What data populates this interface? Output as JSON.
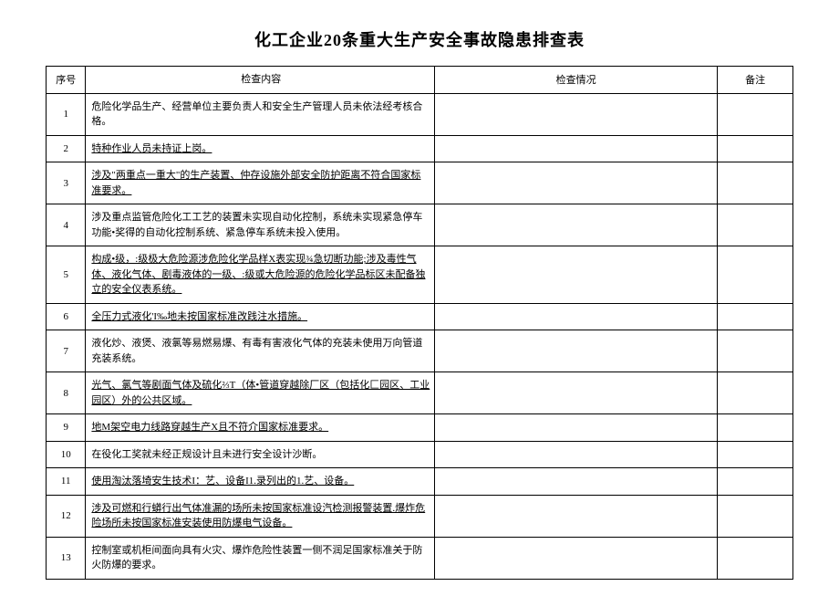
{
  "title": "化工企业20条重大生产安全事故隐患排查表",
  "headers": {
    "num": "序号",
    "content": "检查内容",
    "status": "检查情况",
    "note": "备注"
  },
  "rows": [
    {
      "num": "1",
      "content": "危险化学品生产、经营单位主要负责人和安全生产管理人员未依法经考核合格。",
      "underline": false
    },
    {
      "num": "2",
      "content": "特种作业人员未持证上岗。",
      "underline": true
    },
    {
      "num": "3",
      "content": "涉及\"两重点一重大\"的生产装置、仲存设施外部安全防护距离不符合国家标准要求。",
      "underline": true
    },
    {
      "num": "4",
      "content": "涉及重点监管危险化工工艺的装置未实现自动化控制，系统未实现紧急停车功能•奖得的自动化控制系统、紧急停车系统未投入使用。",
      "underline": false
    },
    {
      "num": "5",
      "content": "构成•级，:级极大危险源涉危险化学品样X表实现¾急切断功能;涉及毒性气体、液化气体、剧毒液体的一级、:级或大危险源的危险化学品标区未配备独立的安全仪表系统。",
      "underline": true
    },
    {
      "num": "6",
      "content": "全压力式液化'I‰地未按国家标准改践注水措施。",
      "underline": true
    },
    {
      "num": "7",
      "content": "液化炒、液煲、液氯等易燃易爆、有毒有害液化气体的充装未使用万向管道充装系统。",
      "underline": false
    },
    {
      "num": "8",
      "content": "光气、氯气等剧面气体及硫化⅔T（体•管道穿越除厂区（包括化匚园区、工业园区）外的公共区域。",
      "underline": true
    },
    {
      "num": "9",
      "content": "地M架空电力线路穿越生产X且不符介国家标准要求。",
      "underline": true
    },
    {
      "num": "10",
      "content": "在役化工奖就未经正规设计且未进行安全设计沙断。",
      "underline": false
    },
    {
      "num": "11",
      "content": "使用淘汰落埼安生技术I：艺、设备I1.录列出的1.艺、设备。",
      "underline": true
    },
    {
      "num": "12",
      "content": "涉及可燃和行蟒行出气体准漏的场所未按国家标准设汽检测报警装置.爆炸危险场所未按国家标准安装使用防爆电气设备。",
      "underline": true
    },
    {
      "num": "13",
      "content": "控制室或机柜间面向具有火灾、爆炸危险性装置一侧不润足国家标准关于防火防爆的要求。",
      "underline": false
    }
  ],
  "style": {
    "background_color": "#ffffff",
    "border_color": "#000000",
    "title_fontsize": 18,
    "cell_fontsize": 11,
    "col_widths": {
      "num": 42,
      "content": 370,
      "status": 300,
      "note": 80
    }
  }
}
